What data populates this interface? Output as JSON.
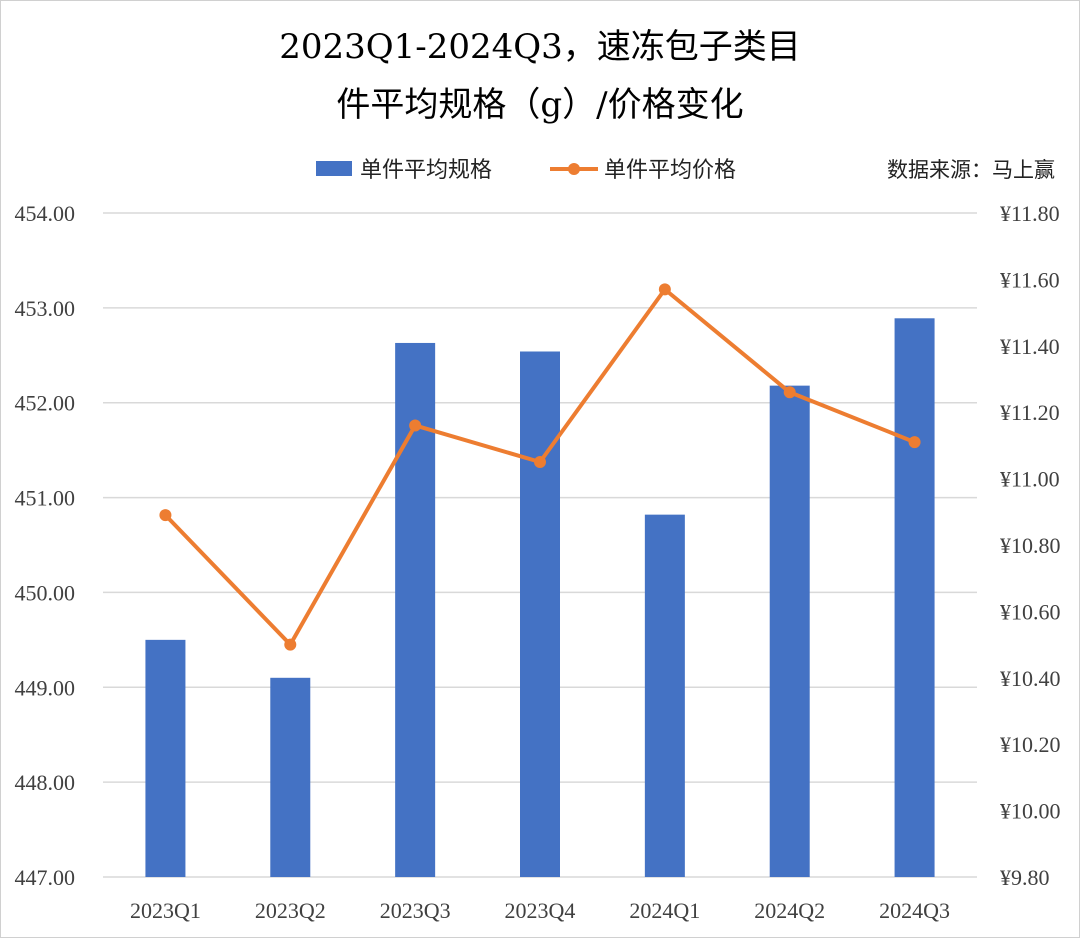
{
  "chart_data": {
    "type": "bar",
    "title_lines": [
      "2023Q1-2024Q3，速冻包子类目",
      "件平均规格（g）/价格变化"
    ],
    "categories": [
      "2023Q1",
      "2023Q2",
      "2023Q3",
      "2023Q4",
      "2024Q1",
      "2024Q2",
      "2024Q3"
    ],
    "series": [
      {
        "name": "单件平均规格",
        "type": "bar",
        "axis": "left",
        "color": "#4472C4",
        "values": [
          449.5,
          449.1,
          452.63,
          452.54,
          450.82,
          452.18,
          452.89
        ]
      },
      {
        "name": "单件平均价格",
        "type": "line",
        "axis": "right",
        "color": "#ED7D31",
        "values": [
          10.89,
          10.5,
          11.16,
          11.05,
          11.57,
          11.26,
          11.11
        ]
      }
    ],
    "left_axis": {
      "min": 447,
      "max": 454,
      "step": 1,
      "tick_labels": [
        "447.00",
        "448.00",
        "449.00",
        "450.00",
        "451.00",
        "452.00",
        "453.00",
        "454.00"
      ]
    },
    "right_axis": {
      "min": 9.8,
      "max": 11.8,
      "step": 0.2,
      "tick_labels": [
        "¥9.80",
        "¥10.00",
        "¥10.20",
        "¥10.40",
        "¥10.60",
        "¥10.80",
        "¥11.00",
        "¥11.20",
        "¥11.40",
        "¥11.60",
        "¥11.80"
      ]
    },
    "grid": true,
    "legend_position": "top",
    "source": "数据来源：马上赢"
  }
}
